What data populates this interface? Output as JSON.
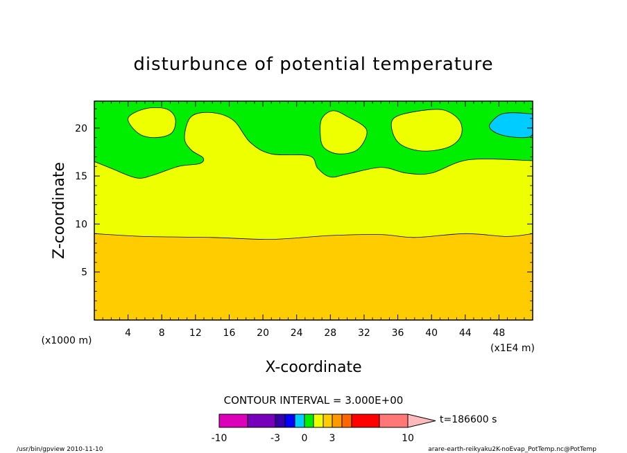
{
  "chart_data": {
    "type": "heatmap",
    "title": "disturbunce of potential temperature",
    "xlabel": "X-coordinate",
    "ylabel": "Z-coordinate",
    "x_unit_left": "(x1000 m)",
    "x_unit_right": "(x1E4 m)",
    "xlim": [
      0,
      52
    ],
    "ylim": [
      0,
      22.8
    ],
    "xticks": [
      "4",
      "8",
      "12",
      "16",
      "20",
      "24",
      "28",
      "32",
      "36",
      "40",
      "44",
      "48"
    ],
    "yticks": [
      "5",
      "10",
      "15",
      "20"
    ],
    "contour_interval_text": "CONTOUR INTERVAL = 3.000E+00",
    "time_label": "t=186600 s",
    "colorbar": {
      "tick_labels": [
        "-10",
        "-3",
        "0",
        "3",
        "10"
      ],
      "bins": [
        {
          "range": [
            -10,
            -6
          ],
          "color": "#dd00bb"
        },
        {
          "range": [
            -6,
            -3
          ],
          "color": "#7700bb"
        },
        {
          "range": [
            -3,
            -2
          ],
          "color": "#3300aa"
        },
        {
          "range": [
            -2,
            -1
          ],
          "color": "#0000ff"
        },
        {
          "range": [
            -1,
            0
          ],
          "color": "#00ccff"
        },
        {
          "range": [
            0,
            1
          ],
          "color": "#00ee00"
        },
        {
          "range": [
            1,
            2
          ],
          "color": "#eeff00"
        },
        {
          "range": [
            2,
            3
          ],
          "color": "#ffcc00"
        },
        {
          "range": [
            3,
            4
          ],
          "color": "#ff9900"
        },
        {
          "range": [
            4,
            5
          ],
          "color": "#ff6600"
        },
        {
          "range": [
            5,
            8
          ],
          "color": "#ff0000"
        },
        {
          "range": [
            8,
            10
          ],
          "color": "#ff7777"
        },
        {
          "range": [
            10,
            13
          ],
          "color": "#ffbbbb"
        }
      ]
    },
    "regions": {
      "background_color": "#00ee00",
      "lower_band": {
        "color": "#ffcc00",
        "top_boundary": [
          [
            0,
            9.0
          ],
          [
            6,
            8.7
          ],
          [
            14,
            8.6
          ],
          [
            21,
            8.4
          ],
          [
            28,
            8.8
          ],
          [
            34,
            8.9
          ],
          [
            38,
            8.6
          ],
          [
            44,
            9.0
          ],
          [
            49,
            8.7
          ],
          [
            52,
            9.0
          ]
        ]
      },
      "middle_band": {
        "color": "#eeff00",
        "top_boundary": [
          [
            0,
            16.5
          ],
          [
            2,
            15.8
          ],
          [
            5,
            14.8
          ],
          [
            7,
            15.1
          ],
          [
            10,
            16.0
          ],
          [
            12.5,
            16.3
          ],
          [
            12.9,
            16.9
          ],
          [
            11.5,
            17.7
          ],
          [
            10.7,
            19.0
          ],
          [
            11.5,
            21.2
          ],
          [
            14,
            21.6
          ],
          [
            16.5,
            20.8
          ],
          [
            18.5,
            18.5
          ],
          [
            21,
            17.3
          ],
          [
            25.5,
            17.1
          ],
          [
            26.5,
            15.8
          ],
          [
            28,
            14.9
          ],
          [
            30,
            15.2
          ],
          [
            34,
            15.9
          ],
          [
            37,
            15.3
          ],
          [
            40,
            15.3
          ],
          [
            44.5,
            16.7
          ],
          [
            52,
            16.6
          ]
        ]
      },
      "cells": [
        {
          "color": "#eeff00",
          "outline": [
            [
              4,
              21.0
            ],
            [
              6,
              22.0
            ],
            [
              8.5,
              22.0
            ],
            [
              9.6,
              21.0
            ],
            [
              9.2,
              19.5
            ],
            [
              7.3,
              19.0
            ],
            [
              5.3,
              19.4
            ]
          ]
        },
        {
          "color": "#eeff00",
          "outline": [
            [
              27,
              21.0
            ],
            [
              28.3,
              21.8
            ],
            [
              30,
              21.2
            ],
            [
              32.3,
              19.8
            ],
            [
              31.3,
              17.8
            ],
            [
              29,
              17.3
            ],
            [
              27.2,
              18.0
            ],
            [
              26.8,
              19.5
            ]
          ]
        },
        {
          "color": "#eeff00",
          "outline": [
            [
              35.5,
              21.0
            ],
            [
              38,
              21.7
            ],
            [
              41.3,
              21.9
            ],
            [
              43.3,
              20.8
            ],
            [
              43.5,
              19.2
            ],
            [
              42,
              18.0
            ],
            [
              39,
              17.6
            ],
            [
              36.5,
              18.2
            ],
            [
              35.4,
              19.5
            ]
          ]
        },
        {
          "color": "#00ccff",
          "outline": [
            [
              47,
              20.5
            ],
            [
              48.5,
              21.5
            ],
            [
              51.5,
              21.5
            ],
            [
              52,
              21.2
            ],
            [
              52,
              19.4
            ],
            [
              51,
              19.0
            ],
            [
              48.6,
              19.2
            ],
            [
              47.1,
              19.8
            ]
          ]
        }
      ]
    }
  },
  "footer": {
    "left_text": "/usr/bin/gpview  2010-11-10",
    "right_text": "arare-earth-reikyaku2K-noEvap_PotTemp.nc@PotTemp"
  }
}
